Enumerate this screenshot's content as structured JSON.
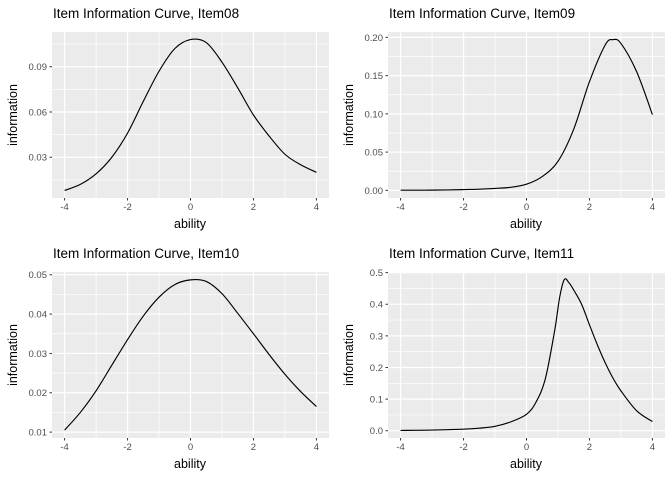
{
  "style": {
    "background": "#FFFFFF",
    "panel_bg": "#EBEBEB",
    "grid_color": "#FFFFFF",
    "curve_color": "#000000",
    "tick_mark_color": "#333333",
    "tick_label_color": "#4D4D4D",
    "title_color": "#000000"
  },
  "chart_data": [
    {
      "id": "Item08",
      "type": "line",
      "title": "Item Information Curve, Item08",
      "xlabel": "ability",
      "ylabel": "information",
      "legend": "none",
      "grid": "on",
      "xlim": [
        -4.4,
        4.4
      ],
      "ylim": [
        0.003,
        0.113
      ],
      "x_ticks": [
        -4,
        -2,
        0,
        2,
        4
      ],
      "x_tick_labels": [
        "-4",
        "-2",
        "0",
        "2",
        "4"
      ],
      "x_minor": [
        -3,
        -1,
        1,
        3
      ],
      "y_ticks": [
        0.03,
        0.06,
        0.09
      ],
      "y_tick_labels": [
        "0.03",
        "0.06",
        "0.09"
      ],
      "y_minor": [
        0.015,
        0.045,
        0.075,
        0.105
      ],
      "x": [
        -4,
        -3.5,
        -3,
        -2.5,
        -2,
        -1.5,
        -1,
        -0.5,
        0,
        0.5,
        1,
        1.5,
        2,
        2.5,
        3,
        3.5,
        4
      ],
      "y": [
        0.008,
        0.012,
        0.019,
        0.03,
        0.046,
        0.067,
        0.087,
        0.102,
        0.108,
        0.106,
        0.093,
        0.076,
        0.058,
        0.044,
        0.032,
        0.025,
        0.02
      ]
    },
    {
      "id": "Item09",
      "type": "line",
      "title": "Item Information Curve, Item09",
      "xlabel": "ability",
      "ylabel": "information",
      "legend": "none",
      "grid": "on",
      "xlim": [
        -4.4,
        4.4
      ],
      "ylim": [
        -0.01,
        0.207
      ],
      "x_ticks": [
        -4,
        -2,
        0,
        2,
        4
      ],
      "x_tick_labels": [
        "-4",
        "-2",
        "0",
        "2",
        "4"
      ],
      "x_minor": [
        -3,
        -1,
        1,
        3
      ],
      "y_ticks": [
        0.0,
        0.05,
        0.1,
        0.15,
        0.2
      ],
      "y_tick_labels": [
        "0.00",
        "0.05",
        "0.10",
        "0.15",
        "0.20"
      ],
      "y_minor": [
        0.025,
        0.075,
        0.125,
        0.175
      ],
      "x": [
        -4,
        -3.5,
        -3,
        -2.5,
        -2,
        -1.5,
        -1,
        -0.5,
        0,
        0.5,
        1,
        1.5,
        2,
        2.5,
        2.75,
        3,
        3.5,
        4
      ],
      "y": [
        0.0002,
        0.0002,
        0.0003,
        0.0005,
        0.001,
        0.0015,
        0.0025,
        0.004,
        0.008,
        0.018,
        0.038,
        0.08,
        0.142,
        0.19,
        0.197,
        0.192,
        0.155,
        0.099
      ]
    },
    {
      "id": "Item10",
      "type": "line",
      "title": "Item Information Curve, Item10",
      "xlabel": "ability",
      "ylabel": "information",
      "legend": "none",
      "grid": "on",
      "xlim": [
        -4.4,
        4.4
      ],
      "ylim": [
        0.0085,
        0.0507
      ],
      "x_ticks": [
        -4,
        -2,
        0,
        2,
        4
      ],
      "x_tick_labels": [
        "-4",
        "-2",
        "0",
        "2",
        "4"
      ],
      "x_minor": [
        -3,
        -1,
        1,
        3
      ],
      "y_ticks": [
        0.01,
        0.02,
        0.03,
        0.04,
        0.05
      ],
      "y_tick_labels": [
        "0.01",
        "0.02",
        "0.03",
        "0.04",
        "0.05"
      ],
      "y_minor": [
        0.015,
        0.025,
        0.035,
        0.045
      ],
      "x": [
        -4,
        -3.5,
        -3,
        -2.5,
        -2,
        -1.5,
        -1,
        -0.5,
        0,
        0.5,
        1,
        1.5,
        2,
        2.5,
        3,
        3.5,
        4
      ],
      "y": [
        0.0105,
        0.015,
        0.0205,
        0.027,
        0.0335,
        0.0395,
        0.0443,
        0.0475,
        0.0487,
        0.0483,
        0.0452,
        0.0402,
        0.035,
        0.0297,
        0.0247,
        0.0203,
        0.0165
      ]
    },
    {
      "id": "Item11",
      "type": "line",
      "title": "Item Information Curve, Item11",
      "xlabel": "ability",
      "ylabel": "information",
      "legend": "none",
      "grid": "on",
      "xlim": [
        -4.4,
        4.4
      ],
      "ylim": [
        -0.023,
        0.502
      ],
      "x_ticks": [
        -4,
        -2,
        0,
        2,
        4
      ],
      "x_tick_labels": [
        "-4",
        "-2",
        "0",
        "2",
        "4"
      ],
      "x_minor": [
        -3,
        -1,
        1,
        3
      ],
      "y_ticks": [
        0.0,
        0.1,
        0.2,
        0.3,
        0.4,
        0.5
      ],
      "y_tick_labels": [
        "0.0",
        "0.1",
        "0.2",
        "0.3",
        "0.4",
        "0.5"
      ],
      "y_minor": [
        0.05,
        0.15,
        0.25,
        0.35,
        0.45
      ],
      "x": [
        -4,
        -3,
        -2,
        -1.5,
        -1,
        -0.5,
        0,
        0.3,
        0.6,
        0.9,
        1.05,
        1.2,
        1.35,
        1.5,
        1.75,
        2,
        2.25,
        2.5,
        2.75,
        3,
        3.5,
        4
      ],
      "y": [
        0.001,
        0.002,
        0.005,
        0.008,
        0.014,
        0.028,
        0.052,
        0.09,
        0.165,
        0.32,
        0.42,
        0.478,
        0.468,
        0.445,
        0.4,
        0.335,
        0.272,
        0.215,
        0.166,
        0.126,
        0.063,
        0.029
      ]
    }
  ]
}
